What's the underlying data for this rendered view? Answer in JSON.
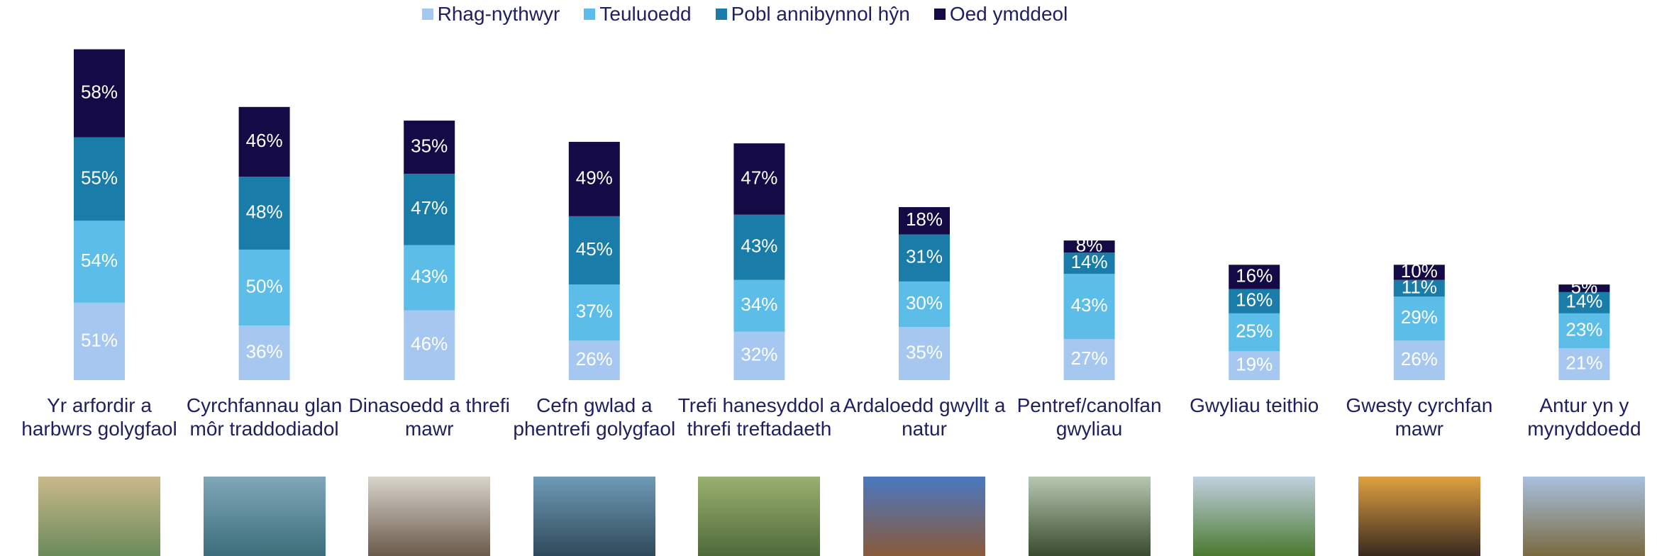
{
  "chart_data": {
    "type": "stacked_bar",
    "categories": [
      "Yr arfordir a harbwrs golygfaol",
      "Cyrchfannau glan môr traddodiadol",
      "Dinasoedd a threfi mawr",
      "Cefn gwlad a phentrefi golygfaol",
      "Trefi hanesyddol a threfi treftadaeth",
      "Ardaloedd gwyllt a natur",
      "Pentref/canolfan gwyliau",
      "Gwyliau teithio",
      "Gwesty cyrchfan mawr",
      "Antur yn y mynyddoedd"
    ],
    "series": [
      {
        "name": "Rhag-nythwyr",
        "color": "#a6c8f0",
        "values": [
          51,
          36,
          46,
          26,
          32,
          35,
          27,
          19,
          26,
          21
        ],
        "value_labels": [
          "51%",
          "36%",
          "46%",
          "26%",
          "32%",
          "35%",
          "27%",
          "19%",
          "26%",
          "21%"
        ]
      },
      {
        "name": "Teuluoedd",
        "color": "#5bbde8",
        "values": [
          54,
          50,
          43,
          37,
          34,
          30,
          43,
          25,
          29,
          23
        ],
        "value_labels": [
          "54%",
          "50%",
          "43%",
          "37%",
          "34%",
          "30%",
          "43%",
          "25%",
          "29%",
          "23%"
        ]
      },
      {
        "name": "Pobl annibynnol hŷn",
        "color": "#1a7ca8",
        "values": [
          55,
          48,
          47,
          45,
          43,
          31,
          14,
          16,
          11,
          14
        ],
        "value_labels": [
          "55%",
          "48%",
          "47%",
          "45%",
          "43%",
          "31%",
          "14%",
          "16%",
          "11%",
          "14%"
        ]
      },
      {
        "name": "Oed ymddeol",
        "color": "#140a45",
        "values": [
          58,
          46,
          35,
          49,
          47,
          18,
          8,
          16,
          10,
          5
        ],
        "value_labels": [
          "58%",
          "46%",
          "35%",
          "49%",
          "47%",
          "18%",
          "8%",
          "16%",
          "10%",
          "5%"
        ]
      }
    ],
    "legend": "top"
  }
}
